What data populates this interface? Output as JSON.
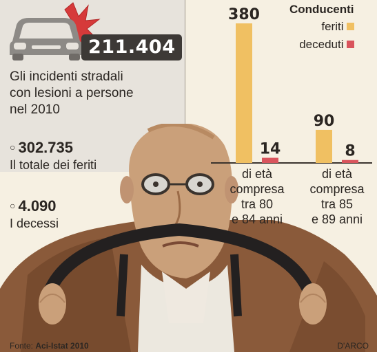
{
  "headline": {
    "number": "211.404",
    "text_lines": [
      "Gli incidenti stradali",
      "con lesioni a persone",
      "nel 2010"
    ]
  },
  "stats": [
    {
      "bullet": "○",
      "value": "302.735",
      "label": "Il totale dei feriti"
    },
    {
      "bullet": "○",
      "value": "4.090",
      "label": "I decessi"
    }
  ],
  "legend": {
    "title": "Conducenti",
    "items": [
      {
        "label": "feriti",
        "color": "#f0c062"
      },
      {
        "label": "deceduti",
        "color": "#d9545c"
      }
    ]
  },
  "chart_data": {
    "type": "bar",
    "categories": [
      [
        "di età",
        "compresa",
        "tra 80",
        "e 84 anni"
      ],
      [
        "di età",
        "compresa",
        "tra 85",
        "e 89 anni"
      ]
    ],
    "series": [
      {
        "name": "feriti",
        "values": [
          380,
          90
        ],
        "color": "#f0c062"
      },
      {
        "name": "deceduti",
        "values": [
          14,
          8
        ],
        "color": "#d9545c"
      }
    ],
    "ylim": [
      0,
      380
    ],
    "grid": false,
    "legend_position": "top-right"
  },
  "footer": {
    "source_prefix": "Fonte: ",
    "source": "Aci-Istat 2010",
    "credit": "D'ARCO"
  },
  "icons": [
    "car-icon",
    "crash-burst-icon"
  ]
}
